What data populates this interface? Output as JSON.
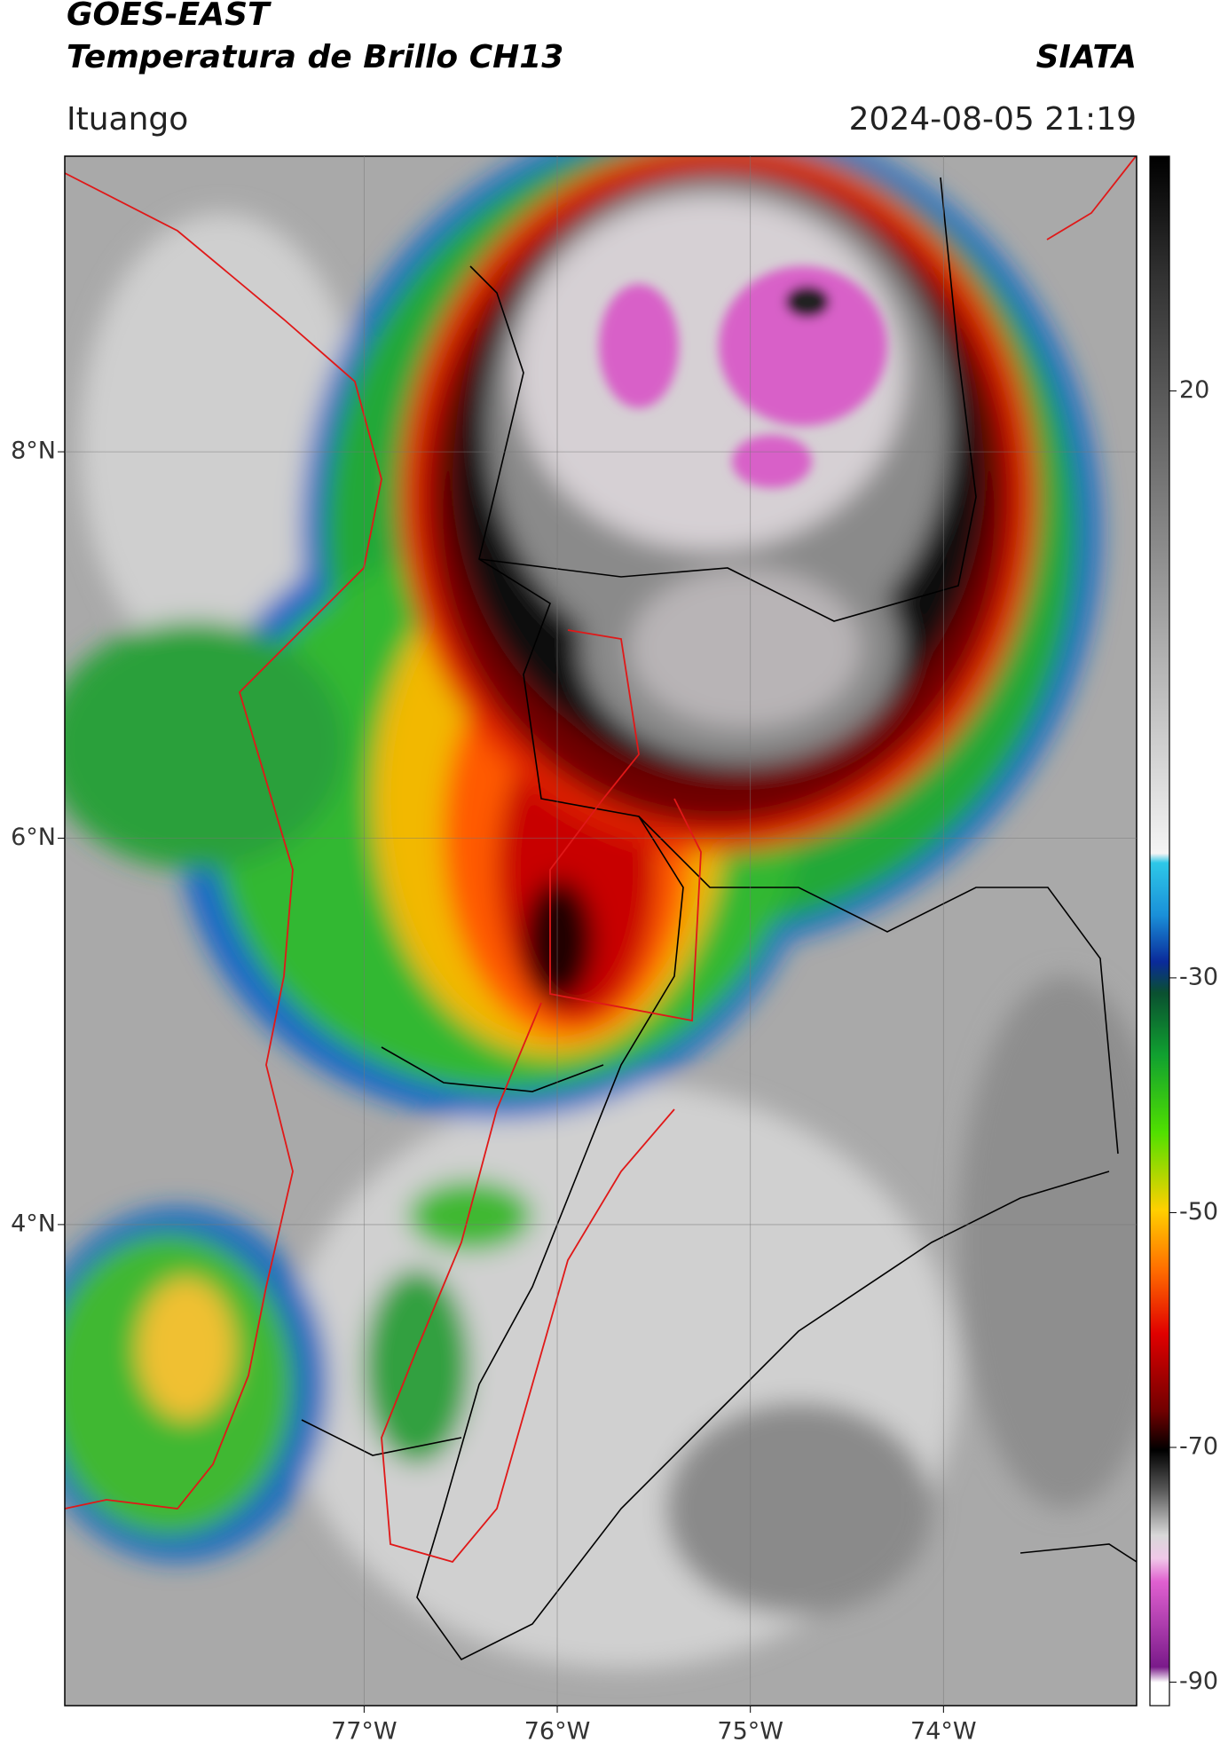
{
  "header": {
    "title": "GOES-EAST",
    "subtitle": "Temperatura de Brillo CH13",
    "organization": "SIATA",
    "location": "Ituango",
    "timestamp": "2024-08-05 21:19"
  },
  "map": {
    "xlim": [
      -78.55,
      -73.0
    ],
    "ylim": [
      1.51,
      9.53
    ],
    "xticks": [
      {
        "value": -77,
        "label": "77°W"
      },
      {
        "value": -76,
        "label": "76°W"
      },
      {
        "value": -75,
        "label": "75°W"
      },
      {
        "value": -74,
        "label": "74°W"
      }
    ],
    "yticks": [
      {
        "value": 8,
        "label": "8°N"
      },
      {
        "value": 6,
        "label": "6°N"
      },
      {
        "value": 4,
        "label": "4°N"
      }
    ],
    "grid": true
  },
  "colorbar": {
    "lim": [
      -92,
      40
    ],
    "ticks": [
      20,
      -30,
      -50,
      -70,
      -90
    ]
  }
}
